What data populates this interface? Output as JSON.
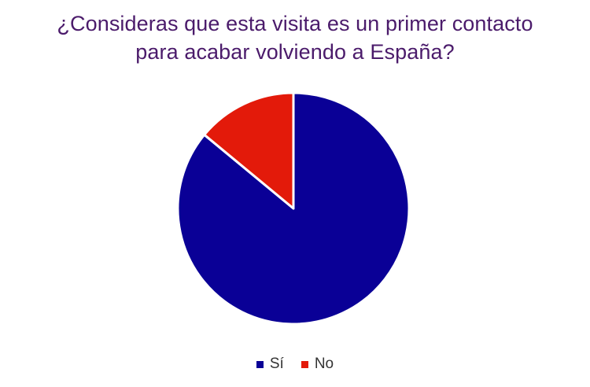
{
  "chart_data": {
    "type": "pie",
    "title_lines": [
      "¿Consideras que esta visita es un primer contacto",
      "para acabar volviendo a España?"
    ],
    "categories": [
      "Sí",
      "No"
    ],
    "values": [
      86,
      14
    ],
    "colors": [
      "#0a0096",
      "#e31a0a"
    ],
    "slice_border_color": "#ffffff",
    "start_angle_deg": 0,
    "direction": "clockwise",
    "legend_position": "bottom"
  },
  "title_color": "#4b1b6b"
}
